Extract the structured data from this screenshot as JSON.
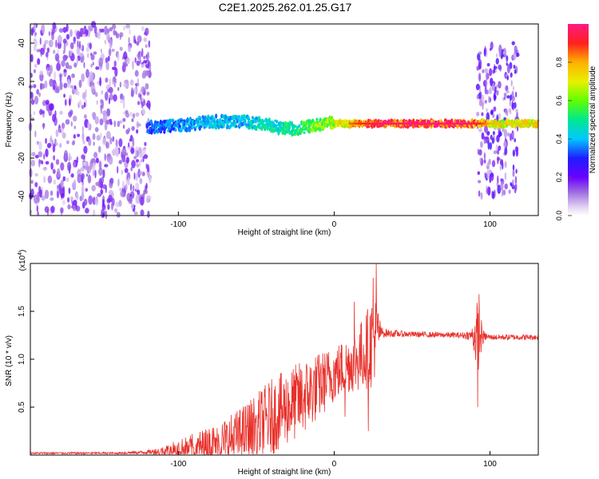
{
  "title": "C2E1.2025.262.01.25.G17",
  "chart_data": [
    {
      "type": "heatmap",
      "xlabel": "Height of straight line (km)",
      "ylabel": "Frequency (Hz)",
      "xlim": [
        -195,
        131
      ],
      "ylim": [
        -50,
        50
      ],
      "xticks": [
        -100,
        0,
        100
      ],
      "yticks": [
        -40,
        -20,
        0,
        20,
        40
      ],
      "colorbar": {
        "label": "Normalized spectral amplitude",
        "range": [
          0,
          1
        ],
        "ticks": [
          "0.0",
          "0.2",
          "0.4",
          "0.6",
          "0.8"
        ]
      },
      "ridge": {
        "x": [
          -120,
          -100,
          -80,
          -60,
          -45,
          -35,
          -25,
          -15,
          -5,
          0,
          10,
          25,
          40,
          60,
          80,
          90,
          100,
          115,
          131
        ],
        "freq_hz": [
          -4,
          -3,
          -1,
          -1,
          -2,
          -4,
          -5,
          -3,
          -2,
          -2,
          -2,
          -2,
          -2,
          -2,
          -2,
          -2,
          -2,
          -2,
          -2
        ],
        "amplitude": [
          0.35,
          0.4,
          0.45,
          0.45,
          0.5,
          0.5,
          0.55,
          0.65,
          0.7,
          0.75,
          0.85,
          0.95,
          1.0,
          1.0,
          1.0,
          0.95,
          0.8,
          0.75,
          0.8
        ]
      },
      "noise_region": {
        "x_start": -195,
        "x_end": -118,
        "amplitude": 0.15
      },
      "burst_region": {
        "x_start": 92,
        "x_end": 118,
        "amplitude": 0.2
      }
    },
    {
      "type": "line",
      "xlabel": "Height of straight line (km)",
      "ylabel": "SNR (10 * v/v)",
      "exponent_label": "(x10",
      "exponent_power": "4",
      "exponent_close": ")",
      "xlim": [
        -195,
        131
      ],
      "ylim": [
        0,
        2.0
      ],
      "xticks": [
        -100,
        0,
        100
      ],
      "yticks": [
        "0.5",
        "1.0",
        "1.5"
      ],
      "series": [
        {
          "name": "SNR",
          "color": "#e8302a",
          "envelope": {
            "x": [
              -195,
              -140,
              -120,
              -110,
              -100,
              -90,
              -80,
              -70,
              -60,
              -50,
              -40,
              -30,
              -20,
              -10,
              0,
              5,
              10,
              15,
              20,
              25,
              28,
              30,
              35,
              50,
              80,
              88,
              92,
              96,
              100,
              131
            ],
            "base": [
              0.02,
              0.02,
              0.03,
              0.04,
              0.06,
              0.08,
              0.1,
              0.14,
              0.2,
              0.3,
              0.4,
              0.5,
              0.6,
              0.72,
              0.85,
              0.9,
              0.95,
              1.0,
              1.08,
              1.2,
              1.3,
              1.28,
              1.27,
              1.26,
              1.25,
              1.25,
              1.24,
              1.24,
              1.23,
              1.23
            ],
            "swing": [
              0.01,
              0.01,
              0.02,
              0.05,
              0.1,
              0.15,
              0.2,
              0.25,
              0.3,
              0.35,
              0.4,
              0.4,
              0.4,
              0.35,
              0.3,
              0.3,
              0.3,
              0.35,
              0.4,
              0.5,
              0.3,
              0.06,
              0.04,
              0.03,
              0.03,
              0.05,
              0.4,
              0.05,
              0.03,
              0.03
            ]
          },
          "peaks": [
            {
              "x": 22,
              "y": 0.25
            },
            {
              "x": 25,
              "y": 1.85
            },
            {
              "x": 27,
              "y": 2.0
            },
            {
              "x": 92,
              "y": 0.5
            },
            {
              "x": 93,
              "y": 1.68
            },
            {
              "x": 7,
              "y": 0.4
            },
            {
              "x": 13,
              "y": 1.6
            }
          ]
        }
      ]
    }
  ]
}
